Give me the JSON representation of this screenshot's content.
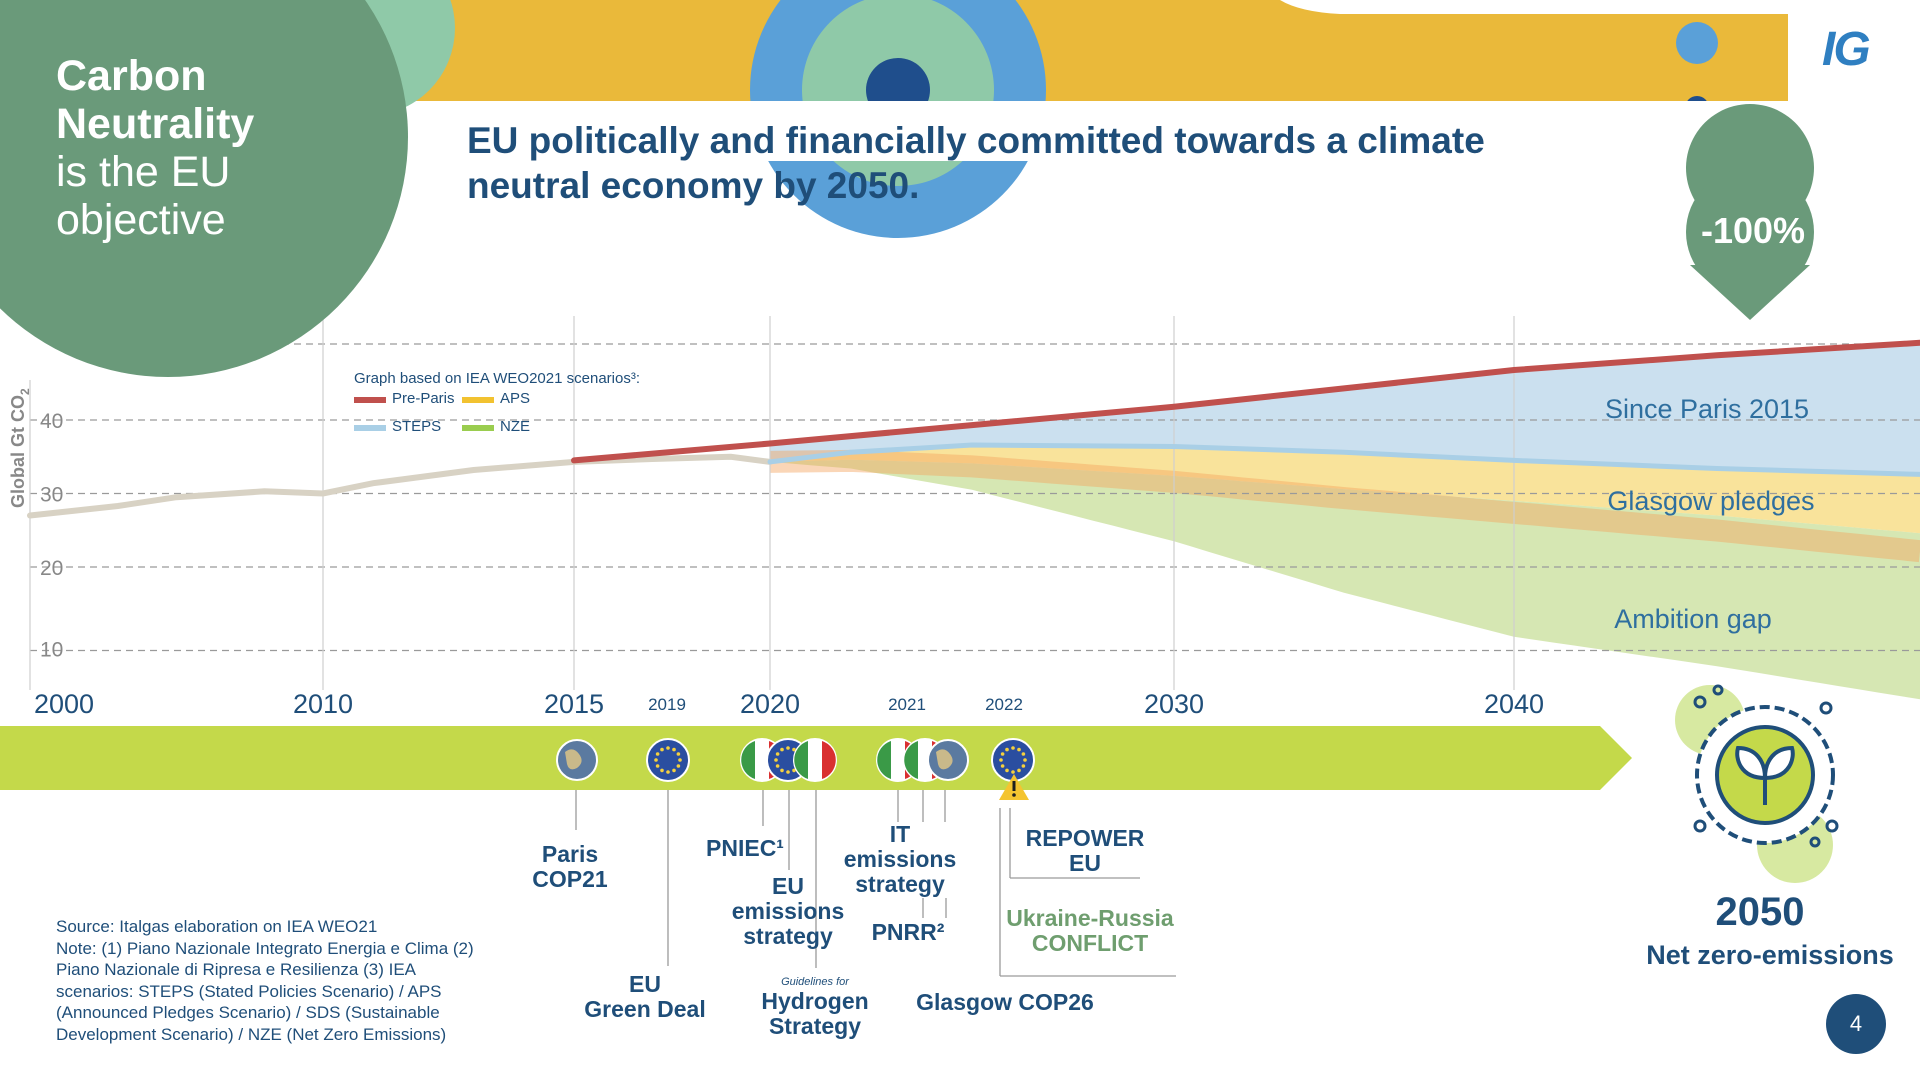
{
  "slide": {
    "heading_line1": "EU politically and financially committed towards a climate",
    "heading_line2": "neutral economy by 2050.",
    "circle_bold1": "Carbon",
    "circle_bold2": "Neutrality",
    "circle_line3": "is the EU",
    "circle_line4": "objective",
    "reduction_badge": "-100%",
    "logo_text": "IG",
    "page_number": "4",
    "net_zero_year": "2050",
    "net_zero_label": "Net zero-emissions",
    "source_lines": [
      "Source: Italgas elaboration on IEA WEO21",
      "Note: (1) Piano Nazionale Integrato Energia e Clima (2)",
      "Piano Nazionale di Ripresa e Resilienza (3) IEA",
      "scenarios: STEPS (Stated Policies Scenario) / APS",
      "(Announced Pledges Scenario) / SDS (Sustainable",
      "Development Scenario) / NZE (Net Zero Emissions)"
    ]
  },
  "chart_data": {
    "type": "area",
    "ylabel": "Global Gt CO",
    "ylabel_sub": "2",
    "y_ticks": [
      10,
      20,
      30,
      40
    ],
    "ylim": [
      5,
      50
    ],
    "xlim": [
      2000,
      2050
    ],
    "x_ticks": [
      2000,
      2010,
      2015,
      2020,
      2030,
      2040
    ],
    "x_ticks_small": [
      2019,
      2021,
      2022
    ],
    "grid": true,
    "legend_title": "Graph based on IEA WEO2021 scenarios³:",
    "legend_position": "top-left",
    "colors": {
      "pre_paris": "#c0504d",
      "aps": "#f2c230",
      "steps": "#a9cfe6",
      "nze": "#9acd4f",
      "history": "#d8d2c4",
      "orange": "#f4a460"
    },
    "series": [
      {
        "name": "Pre-Paris",
        "x": [
          2015,
          2020,
          2025,
          2030,
          2035,
          2040,
          2045,
          2050
        ],
        "y": [
          34.5,
          36.8,
          39.3,
          41.8,
          44.3,
          46.8,
          48.8,
          50.5
        ]
      },
      {
        "name": "STEPS",
        "x": [
          2020,
          2022,
          2025,
          2030,
          2035,
          2040,
          2045,
          2050
        ],
        "y": [
          34.3,
          35.6,
          36.6,
          36.4,
          35.6,
          34.5,
          33.4,
          32.6
        ]
      },
      {
        "name": "APS",
        "x": [
          2020,
          2022,
          2025,
          2030,
          2035,
          2040,
          2045,
          2050
        ],
        "y": [
          34.3,
          34.6,
          34.1,
          32.4,
          30.6,
          29.0,
          27.0,
          24.6
        ]
      },
      {
        "name": "NZE",
        "x": [
          2020,
          2022,
          2025,
          2030,
          2035,
          2040,
          2045,
          2050
        ],
        "y": [
          34.3,
          33.4,
          30.5,
          23.5,
          16.5,
          10.5,
          6.5,
          2.0
        ]
      }
    ],
    "history": {
      "x": [
        2000,
        2003,
        2005,
        2008,
        2010,
        2011,
        2013,
        2015,
        2017,
        2019,
        2020
      ],
      "y": [
        27.0,
        28.3,
        29.5,
        30.3,
        30.0,
        31.4,
        33.2,
        34.3,
        34.7,
        35.0,
        34.3
      ]
    },
    "zones": [
      "Since Paris 2015",
      "Glasgow pledges",
      "Ambition gap"
    ]
  },
  "timeline": {
    "events": [
      {
        "lines": [
          "Paris",
          "COP21"
        ]
      },
      {
        "lines": [
          "EU",
          "Green Deal"
        ]
      },
      {
        "lines": [
          "PNIEC¹"
        ]
      },
      {
        "lines": [
          "EU",
          "emissions",
          "strategy"
        ]
      },
      {
        "small": "Guidelines for",
        "lines": [
          "Hydrogen",
          "Strategy"
        ]
      },
      {
        "lines": [
          "IT",
          "emissions",
          "strategy"
        ]
      },
      {
        "lines": [
          "PNRR²"
        ]
      },
      {
        "lines": [
          "REPOWER",
          "EU"
        ]
      },
      {
        "lines": [
          "Ukraine-Russia",
          "CONFLICT"
        ]
      },
      {
        "lines": [
          "Glasgow COP26"
        ]
      }
    ]
  }
}
